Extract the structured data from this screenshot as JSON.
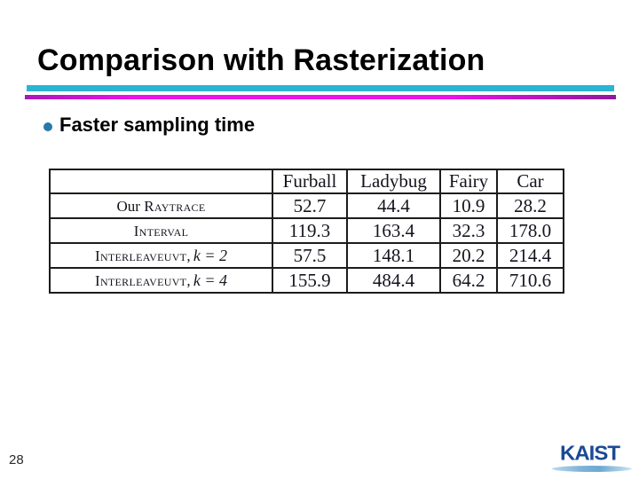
{
  "slide": {
    "title": "Comparison with Rasterization",
    "bullet": "Faster sampling time",
    "page_number": "28",
    "logo_text": "KAIST"
  },
  "colors": {
    "accent_cyan": "#2bb3d4",
    "accent_magenta": "#ec10ec",
    "accent_purple": "#8e189e",
    "bullet_dot": "#2878a8",
    "logo_blue": "#1b4a94",
    "logo_swoosh_blue": "#7fb4d8",
    "table_border": "#1c1c1c"
  },
  "table": {
    "headers": [
      "",
      "Furball",
      "Ladybug",
      "Fairy",
      "Car"
    ],
    "rows": [
      {
        "pre": "Our ",
        "sc": "Raytrace",
        "math": "",
        "values": [
          "52.7",
          "44.4",
          "10.9",
          "28.2"
        ]
      },
      {
        "pre": "",
        "sc": "Interval",
        "math": "",
        "values": [
          "119.3",
          "163.4",
          "32.3",
          "178.0"
        ]
      },
      {
        "pre": "",
        "sc": "Interleaveuvt,",
        "math": "k = 2",
        "values": [
          "57.5",
          "148.1",
          "20.2",
          "214.4"
        ]
      },
      {
        "pre": "",
        "sc": "Interleaveuvt,",
        "math": "k = 4",
        "values": [
          "155.9",
          "484.4",
          "64.2",
          "710.6"
        ]
      }
    ]
  }
}
